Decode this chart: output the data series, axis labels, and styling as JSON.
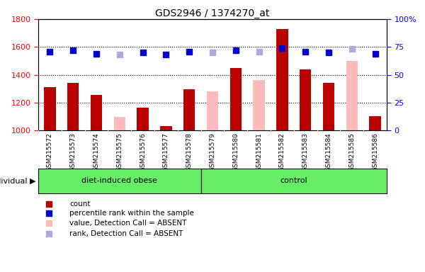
{
  "title": "GDS2946 / 1374270_at",
  "samples": [
    "GSM215572",
    "GSM215573",
    "GSM215574",
    "GSM215575",
    "GSM215576",
    "GSM215577",
    "GSM215578",
    "GSM215579",
    "GSM215580",
    "GSM215581",
    "GSM215582",
    "GSM215583",
    "GSM215584",
    "GSM215585",
    "GSM215586"
  ],
  "n_group1": 7,
  "n_group2": 8,
  "group1_label": "diet-induced obese",
  "group2_label": "control",
  "count_values": [
    1310,
    1340,
    1255,
    null,
    1165,
    1030,
    1295,
    null,
    1450,
    null,
    1730,
    1440,
    1340,
    null,
    1105
  ],
  "absent_value": [
    null,
    null,
    null,
    1098,
    null,
    null,
    null,
    1280,
    null,
    1360,
    null,
    null,
    null,
    1500,
    null
  ],
  "rank_pct": [
    71,
    72,
    69,
    null,
    70,
    68,
    71,
    null,
    72,
    null,
    74,
    71,
    70,
    null,
    69
  ],
  "absent_rank_pct": [
    null,
    null,
    null,
    68,
    null,
    null,
    null,
    70,
    null,
    71,
    null,
    null,
    null,
    73,
    null
  ],
  "ylim_left": [
    1000,
    1800
  ],
  "ylim_right": [
    0,
    100
  ],
  "yticks_left": [
    1000,
    1200,
    1400,
    1600,
    1800
  ],
  "yticks_right": [
    0,
    25,
    50,
    75,
    100
  ],
  "bar_color_present": "#bb0000",
  "bar_color_absent": "#ffbbbb",
  "rank_color_present": "#0000cc",
  "rank_color_absent": "#aaaadd",
  "plot_bg": "#ffffff",
  "xlabel_bg": "#cccccc",
  "group_label_bg": "#66ee66",
  "legend_items": [
    "count",
    "percentile rank within the sample",
    "value, Detection Call = ABSENT",
    "rank, Detection Call = ABSENT"
  ],
  "legend_colors": [
    "#bb0000",
    "#0000cc",
    "#ffbbbb",
    "#aaaadd"
  ],
  "individual_label": "individual"
}
